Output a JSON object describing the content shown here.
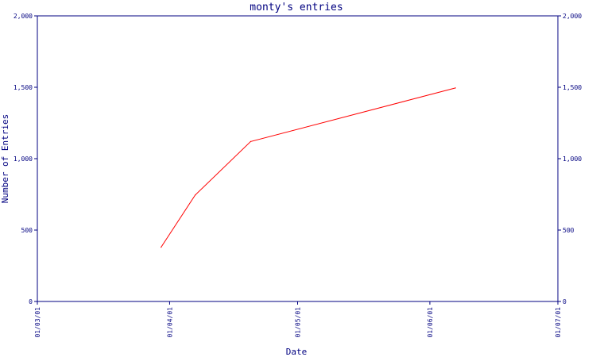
{
  "chart_data": {
    "type": "line",
    "title": "monty's entries",
    "xlabel": "Date",
    "ylabel": "Number of Entries",
    "ylim": [
      0,
      2000
    ],
    "yticks": [
      0,
      500,
      1000,
      1500,
      2000
    ],
    "y_tick_labels": [
      "0",
      "500",
      "1,000",
      "1,500",
      "2,000"
    ],
    "xlim": [
      "2001-03-01",
      "2001-07-01"
    ],
    "x_ticks": [
      "2001-03-01",
      "2001-04-01",
      "2001-05-01",
      "2001-06-01",
      "2001-07-01"
    ],
    "x_tick_labels": [
      "01/03/01",
      "01/04/01",
      "01/05/01",
      "01/06/01",
      "01/07/01"
    ],
    "grid": false,
    "series": [
      {
        "x": [
          "2001-03-30",
          "2001-04-07",
          "2001-04-20",
          "2001-06-07"
        ],
        "y": [
          380,
          745,
          1120,
          1495
        ]
      }
    ]
  },
  "colors": {
    "axis": "#000080",
    "text": "#000080",
    "line": "#ff0000",
    "background": "#ffffff"
  }
}
